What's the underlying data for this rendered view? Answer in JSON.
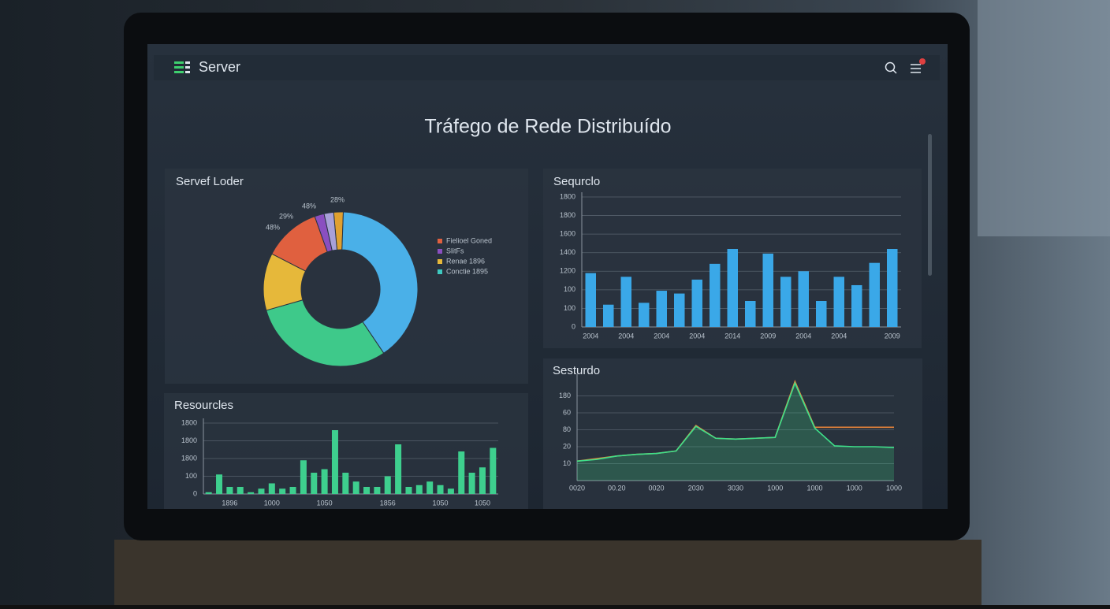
{
  "header": {
    "title": "Server"
  },
  "page_title": "Tráfego de Rede Distribuído",
  "chart_data": [
    {
      "type": "pie",
      "title": "Servef Loder",
      "categories": [
        null,
        null,
        null,
        null,
        "Fielioel Goned",
        "SlitFs",
        null
      ],
      "values": [
        2,
        40,
        30,
        12,
        12,
        2,
        2
      ],
      "colors": [
        "#e0a030",
        "#4ab0e8",
        "#3ec98a",
        "#e6b83a",
        "#e0603f",
        "#8a4fc0",
        "#a8a0d8"
      ],
      "legend": [
        {
          "name": "Fielioel Goned",
          "color": "#e0603f"
        },
        {
          "name": "SlitFs",
          "color": "#8a4fc0"
        },
        {
          "name": "Renae 1896",
          "color": "#e6b83a"
        },
        {
          "name": "Conctie 1895",
          "color": "#3ec9c0"
        }
      ],
      "annotations": [
        "28%",
        "48%",
        "29%",
        "48%"
      ]
    },
    {
      "type": "bar",
      "title": "Sequrclo",
      "color": "#3aa8e8",
      "categories": [
        "2004",
        null,
        "2004",
        null,
        "2004",
        null,
        "2004",
        null,
        "2014",
        null,
        "2009",
        null,
        "2004",
        null,
        "2004",
        null,
        null,
        "2009"
      ],
      "values": [
        580,
        240,
        540,
        260,
        390,
        360,
        510,
        680,
        840,
        280,
        790,
        540,
        600,
        280,
        540,
        450,
        690,
        840
      ],
      "ylim": [
        0,
        1400
      ],
      "yticks": [
        0,
        {
          "value": 200,
          "label": "100"
        },
        {
          "value": 400,
          "label": "100"
        },
        {
          "value": 600,
          "label": "1200"
        },
        {
          "value": 800,
          "label": "1400"
        },
        {
          "value": 1000,
          "label": "1600"
        },
        {
          "value": 1200,
          "label": "1800"
        },
        {
          "value": 1400,
          "label": "1800"
        }
      ],
      "grid": true
    },
    {
      "type": "bar",
      "title": "Resourcles",
      "color": "#3ecf8e",
      "categories": [
        null,
        null,
        "1896",
        null,
        null,
        null,
        "1000",
        null,
        null,
        null,
        null,
        "1050",
        null,
        null,
        null,
        null,
        null,
        "1856",
        null,
        null,
        null,
        null,
        "1050",
        null,
        null,
        null,
        "1050",
        null
      ],
      "values": [
        10,
        110,
        40,
        40,
        10,
        30,
        60,
        30,
        40,
        190,
        120,
        140,
        360,
        120,
        70,
        40,
        40,
        100,
        280,
        40,
        50,
        70,
        50,
        30,
        240,
        120,
        150,
        260
      ],
      "ylim": [
        0,
        400
      ],
      "yticks": [
        0,
        100,
        {
          "value": 200,
          "label": "1800"
        },
        {
          "value": 300,
          "label": "1800"
        },
        {
          "value": 400,
          "label": "1800"
        }
      ],
      "grid": true
    },
    {
      "type": "line",
      "title": "Sesturdo",
      "categories": [
        "0020",
        null,
        "00.20",
        null,
        "0020",
        null,
        "2030",
        null,
        "3030",
        null,
        "1000",
        null,
        "1000",
        null,
        "1000",
        null,
        "1000"
      ],
      "series": [
        {
          "color": "#e8843a",
          "values": [
            3,
            6,
            9,
            11,
            12,
            15,
            45,
            30,
            29,
            30,
            31,
            97,
            43,
            43,
            43,
            43,
            43
          ]
        },
        {
          "color": "#3ee08a",
          "area": true,
          "values": [
            3,
            5,
            9,
            11,
            12,
            15,
            44,
            30,
            29,
            30,
            31,
            95,
            42,
            21,
            20,
            20,
            19
          ]
        }
      ],
      "ylim": [
        -20,
        100
      ],
      "yticks": [
        {
          "value": 0,
          "label": "10"
        },
        20,
        {
          "value": 40,
          "label": "80"
        },
        60,
        {
          "value": 80,
          "label": "180"
        }
      ],
      "grid": true
    }
  ]
}
